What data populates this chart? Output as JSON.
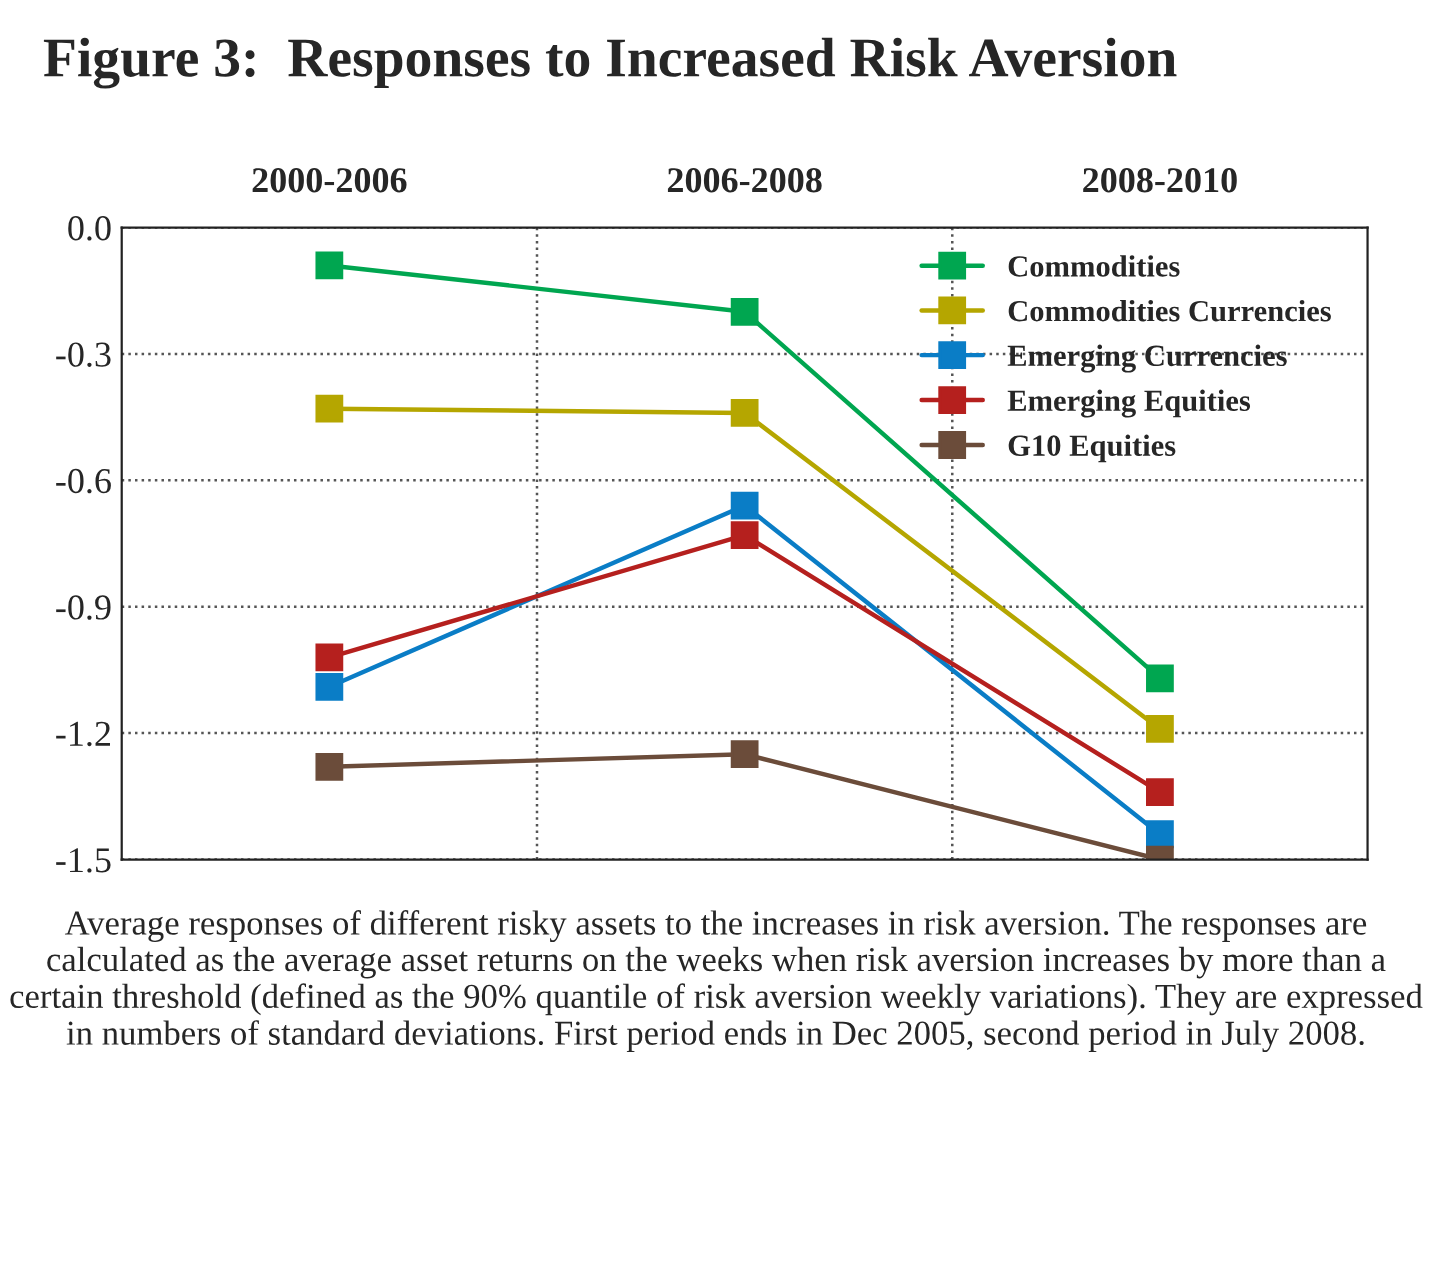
{
  "chart_data": {
    "type": "line",
    "title": "Figure 3:  Responses to Increased Risk Aversion",
    "categories": [
      "2000-2006",
      "2006-2008",
      "2008-2010"
    ],
    "series": [
      {
        "name": "Commodities",
        "color": "#00a650",
        "values": [
          -0.09,
          -0.2,
          -1.07
        ]
      },
      {
        "name": "Commodities Currencies",
        "color": "#b5a600",
        "values": [
          -0.43,
          -0.44,
          -1.19
        ]
      },
      {
        "name": "Emerging Currencies",
        "color": "#0a7dc6",
        "values": [
          -1.09,
          -0.66,
          -1.44
        ]
      },
      {
        "name": "Emerging Equities",
        "color": "#b5201e",
        "values": [
          -1.02,
          -0.73,
          -1.34
        ]
      },
      {
        "name": "G10 Equities",
        "color": "#6b4c3a",
        "values": [
          -1.28,
          -1.25,
          -1.5
        ]
      }
    ],
    "ylim": [
      -1.5,
      0.0
    ],
    "yticks": [
      {
        "value": 0.0,
        "label": "0.0"
      },
      {
        "value": -0.3,
        "label": "-0.3"
      },
      {
        "value": -0.6,
        "label": "-0.6"
      },
      {
        "value": -0.9,
        "label": "-0.9"
      },
      {
        "value": -1.2,
        "label": "-1.2"
      },
      {
        "value": -1.5,
        "label": "-1.5"
      }
    ],
    "grid": true,
    "legend": "top right",
    "marker": "square",
    "line_style": "solid",
    "annotations": [
      "Average responses of different risky assets to the increases in risk aversion. The responses are calculated as the average asset returns on the weeks when risk aversion increases by more than a certain threshold (defined as the 90% quantile of risk aversion weekly variations). They are expressed in numbers of standard deviations. First period ends in Dec 2005, second period in July 2008."
    ]
  }
}
